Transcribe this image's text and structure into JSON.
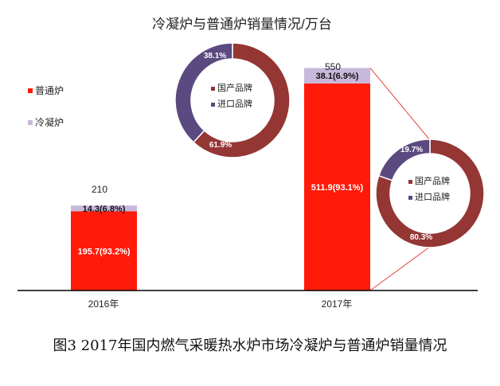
{
  "chart_data": {
    "type": "bar",
    "title": "冷凝炉与普通炉销量情况/万台",
    "categories": [
      "2016年",
      "2017年"
    ],
    "series": [
      {
        "name": "普通炉",
        "values": [
          195.7,
          511.9
        ],
        "labels": [
          "195.7(93.2%)",
          "511.9(93.1%)"
        ]
      },
      {
        "name": "冷凝炉",
        "values": [
          14.3,
          38.1
        ],
        "labels": [
          "14.3(6.8%)",
          "38.1(6.9%)"
        ]
      }
    ],
    "totals": [
      "210",
      "550"
    ],
    "stacked": true,
    "legend_position": "left",
    "grid": false,
    "ylim": [
      0,
      600
    ],
    "donuts": [
      {
        "segments": [
          {
            "name": "国产品牌",
            "value": 61.9,
            "label": "61.9%"
          },
          {
            "name": "进口品牌",
            "value": 38.1,
            "label": "38.1%"
          }
        ]
      },
      {
        "segments": [
          {
            "name": "国产品牌",
            "value": 80.3,
            "label": "80.3%"
          },
          {
            "name": "进口品牌",
            "value": 19.7,
            "label": "19.7%"
          }
        ]
      }
    ],
    "colors": {
      "normal": "#ff1a0a",
      "condensing": "#c8b8dc",
      "domestic": "#943634",
      "imported": "#5b4a80",
      "connector": "#e8413a",
      "axis": "#000000"
    }
  },
  "caption": "图3  2017年国内燃气采暖热水炉市场冷凝炉与普通炉销量情况"
}
